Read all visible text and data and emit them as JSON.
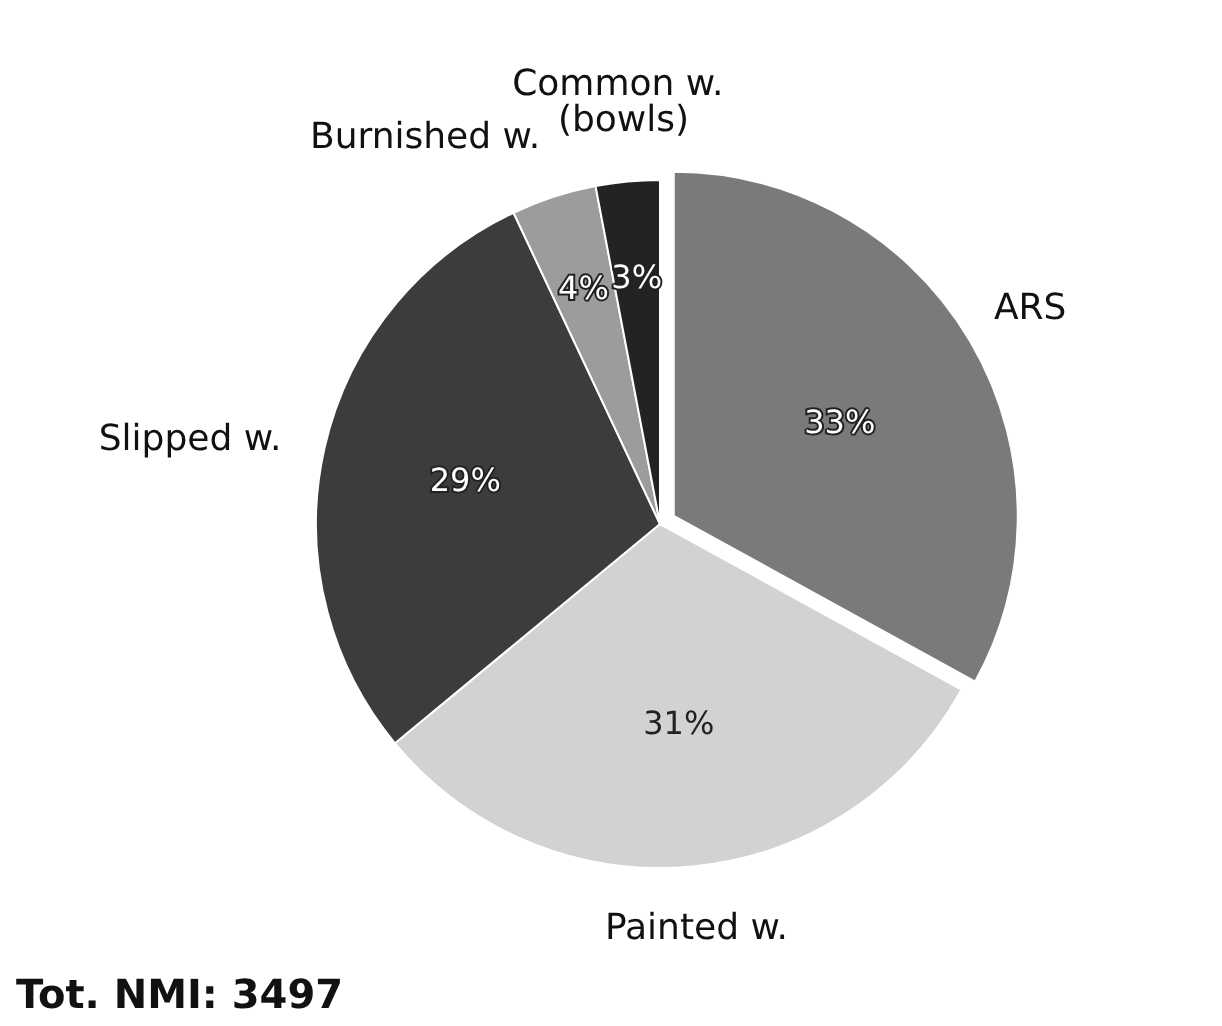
{
  "chart_data": {
    "type": "pie",
    "categories": [
      "ARS",
      "Painted w.",
      "Slipped w.",
      "Burnished w.",
      "Common w. (bowls)"
    ],
    "values": [
      33,
      31,
      29,
      4,
      3
    ],
    "value_labels": [
      "33%",
      "31%",
      "29%",
      "4%",
      "3%"
    ],
    "colors": [
      "#7a7a7a",
      "#d2d2d2",
      "#3c3c3c",
      "#9c9c9c",
      "#232323"
    ],
    "annotations": [
      "Tot. NMI: 3497"
    ]
  }
}
